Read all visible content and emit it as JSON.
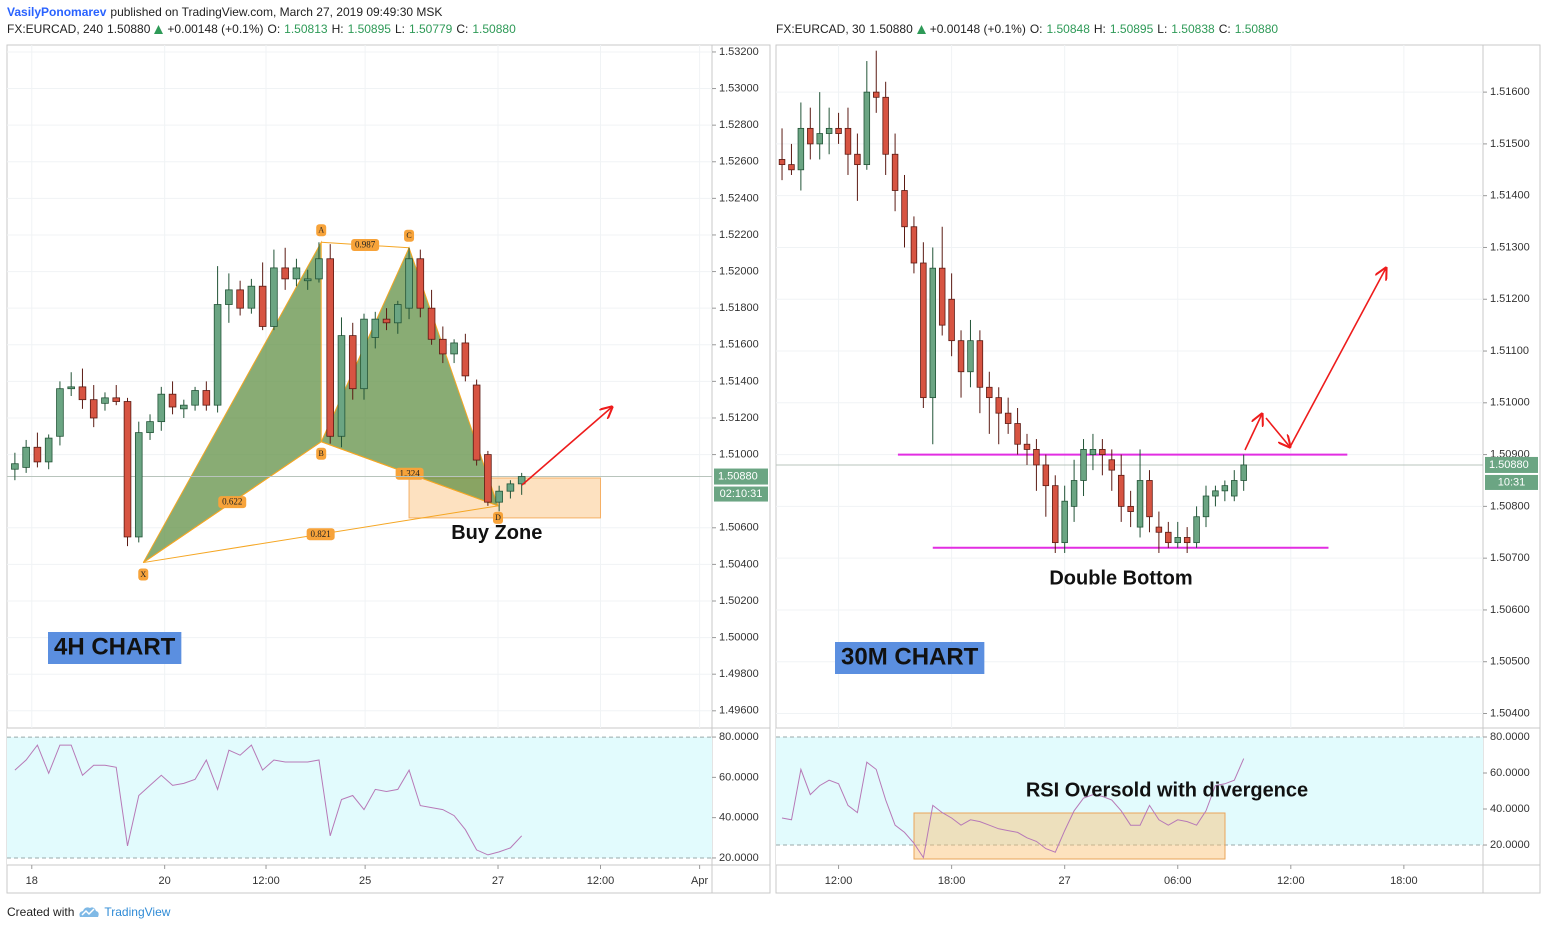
{
  "header": {
    "author": "VasilyPonomarev",
    "published": "published on TradingView.com, March 27, 2019 09:49:30 MSK"
  },
  "footer": {
    "created": "Created with",
    "brand": "TradingView"
  },
  "chart_data": [
    {
      "type": "candlestick",
      "legend": {
        "symbol": "FX:EURCAD, 240",
        "last": "1.50880",
        "change": "+0.00148 (+0.1%)",
        "ohlc": [
          {
            "name": "O:",
            "value": "1.50813"
          },
          {
            "name": "H:",
            "value": "1.50895"
          },
          {
            "name": "L:",
            "value": "1.50779"
          },
          {
            "name": "C:",
            "value": "1.50880"
          }
        ]
      },
      "colors": {
        "up": "#6ba583",
        "down": "#d75442",
        "up_border": "#225437",
        "down_border": "#5b1a13",
        "rsi": "#b779b7"
      },
      "grid": true,
      "open": [
        1.5092,
        1.5093,
        1.5104,
        1.5096,
        1.511,
        1.5136,
        1.5137,
        1.513,
        1.5128,
        1.5131,
        1.5129,
        1.5055,
        1.5112,
        1.5118,
        1.5133,
        1.5125,
        1.5127,
        1.5135,
        1.5127,
        1.5182,
        1.519,
        1.518,
        1.5192,
        1.517,
        1.5202,
        1.5196,
        1.5195,
        1.5196,
        1.5207,
        1.511,
        1.5165,
        1.5136,
        1.5164,
        1.5174,
        1.5172,
        1.518,
        1.5207,
        1.518,
        1.5163,
        1.5155,
        1.5161,
        1.5138,
        1.51,
        1.5074,
        1.508,
        1.5084
      ],
      "high": [
        1.5101,
        1.5108,
        1.5112,
        1.5111,
        1.514,
        1.5145,
        1.5147,
        1.5138,
        1.5134,
        1.5138,
        1.5131,
        1.5118,
        1.5122,
        1.5137,
        1.514,
        1.513,
        1.5137,
        1.514,
        1.5203,
        1.5199,
        1.5195,
        1.5196,
        1.5205,
        1.5212,
        1.5213,
        1.5207,
        1.5201,
        1.5216,
        1.5215,
        1.5175,
        1.5172,
        1.5177,
        1.5178,
        1.518,
        1.5184,
        1.5213,
        1.5212,
        1.519,
        1.517,
        1.5163,
        1.5166,
        1.5141,
        1.5102,
        1.5083,
        1.5086,
        1.509
      ],
      "low": [
        1.5086,
        1.509,
        1.5093,
        1.5092,
        1.5105,
        1.5132,
        1.5125,
        1.5115,
        1.5124,
        1.5127,
        1.505,
        1.5052,
        1.5108,
        1.5113,
        1.5122,
        1.512,
        1.5124,
        1.5124,
        1.5123,
        1.5172,
        1.5176,
        1.5177,
        1.5168,
        1.5168,
        1.519,
        1.5192,
        1.519,
        1.5194,
        1.5106,
        1.5104,
        1.513,
        1.513,
        1.5158,
        1.5168,
        1.5166,
        1.5174,
        1.5175,
        1.516,
        1.515,
        1.515,
        1.514,
        1.5094,
        1.5072,
        1.5069,
        1.5076,
        1.5078
      ],
      "close": [
        1.5095,
        1.5104,
        1.5096,
        1.5109,
        1.5136,
        1.5137,
        1.513,
        1.512,
        1.5131,
        1.5129,
        1.5055,
        1.5112,
        1.5118,
        1.5133,
        1.5126,
        1.5127,
        1.5135,
        1.5127,
        1.5182,
        1.519,
        1.518,
        1.5192,
        1.517,
        1.5202,
        1.5196,
        1.5202,
        1.5196,
        1.5207,
        1.511,
        1.5165,
        1.5136,
        1.5174,
        1.5174,
        1.5172,
        1.5182,
        1.5207,
        1.518,
        1.5163,
        1.5155,
        1.5161,
        1.5143,
        1.5097,
        1.5074,
        1.508,
        1.5084,
        1.5088
      ],
      "xlim": [
        -0.7,
        61.9
      ],
      "xticks": [
        {
          "value": 1.5,
          "label": "18"
        },
        {
          "value": 13.3,
          "label": "20"
        },
        {
          "value": 22.3,
          "label": "12:00"
        },
        {
          "value": 31.1,
          "label": "25"
        },
        {
          "value": 42.9,
          "label": "27"
        },
        {
          "value": 52,
          "label": "12:00"
        },
        {
          "value": 60.8,
          "label": "Apr"
        }
      ],
      "ylim": [
        1.49506,
        1.53238
      ],
      "yticks": [
        {
          "value": 1.532,
          "label": "1.53200"
        },
        {
          "value": 1.53,
          "label": "1.53000"
        },
        {
          "value": 1.528,
          "label": "1.52800"
        },
        {
          "value": 1.526,
          "label": "1.52600"
        },
        {
          "value": 1.524,
          "label": "1.52400"
        },
        {
          "value": 1.522,
          "label": "1.52200"
        },
        {
          "value": 1.52,
          "label": "1.52000"
        },
        {
          "value": 1.518,
          "label": "1.51800"
        },
        {
          "value": 1.516,
          "label": "1.51600"
        },
        {
          "value": 1.514,
          "label": "1.51400"
        },
        {
          "value": 1.512,
          "label": "1.51200"
        },
        {
          "value": 1.51,
          "label": "1.51000"
        },
        {
          "value": 1.506,
          "label": "1.50600"
        },
        {
          "value": 1.504,
          "label": "1.50400"
        },
        {
          "value": 1.502,
          "label": "1.50200"
        },
        {
          "value": 1.5,
          "label": "1.50000"
        },
        {
          "value": 1.498,
          "label": "1.49800"
        },
        {
          "value": 1.496,
          "label": "1.49600"
        }
      ],
      "last_price": {
        "value": 1.5088,
        "label": "1.50880"
      },
      "countdown": "02:10:31",
      "rsi": {
        "values": [
          63.6,
          68.6,
          76,
          62,
          76,
          76,
          61,
          66,
          66,
          65,
          26,
          51,
          56,
          61,
          56,
          57,
          59,
          68.6,
          54,
          73.5,
          71,
          76,
          63.6,
          68.6,
          67.6,
          67.6,
          67.6,
          68.6,
          31,
          49,
          51,
          44,
          54,
          53,
          54,
          63.6,
          46,
          45,
          44,
          41,
          34,
          24,
          21.5,
          23,
          25,
          31
        ],
        "ylim": [
          16.5,
          84.5
        ],
        "yticks": [
          {
            "value": 80,
            "label": "80.0000"
          },
          {
            "value": 60,
            "label": "60.0000"
          },
          {
            "value": 40,
            "label": "40.0000"
          },
          {
            "value": 20,
            "label": "20.0000"
          }
        ]
      },
      "pattern": {
        "points": [
          {
            "label": "X",
            "x": 11.4,
            "price": 1.5041
          },
          {
            "label": "A",
            "x": 27.2,
            "price": 1.5216
          },
          {
            "label": "B",
            "x": 27.2,
            "price": 1.5107
          },
          {
            "label": "C",
            "x": 35.0,
            "price": 1.5213
          },
          {
            "label": "D",
            "x": 42.9,
            "price": 1.5072
          }
        ],
        "ratios": {
          "XB": 0.622,
          "AC": 0.987,
          "BD": 1.324,
          "XD": 0.821
        }
      },
      "zone": {
        "label": "Buy Zone",
        "x": [
          35,
          52
        ],
        "price": [
          1.50654,
          1.50872
        ]
      },
      "chart_label": "4H CHART",
      "annotations": []
    },
    {
      "type": "candlestick",
      "legend": {
        "symbol": "FX:EURCAD, 30",
        "last": "1.50880",
        "change": "+0.00148 (+0.1%)",
        "ohlc": [
          {
            "name": "O:",
            "value": "1.50848"
          },
          {
            "name": "H:",
            "value": "1.50895"
          },
          {
            "name": "L:",
            "value": "1.50838"
          },
          {
            "name": "C:",
            "value": "1.50880"
          }
        ]
      },
      "colors": {
        "up": "#6ba583",
        "down": "#d75442",
        "up_border": "#225437",
        "down_border": "#5b1a13",
        "rsi": "#b779b7"
      },
      "grid": true,
      "open": [
        1.5147,
        1.5146,
        1.5145,
        1.5153,
        1.515,
        1.5152,
        1.5153,
        1.5153,
        1.5148,
        1.5146,
        1.516,
        1.5159,
        1.5148,
        1.5141,
        1.5134,
        1.5127,
        1.5101,
        1.5126,
        1.512,
        1.5112,
        1.5106,
        1.5112,
        1.5103,
        1.5101,
        1.5098,
        1.5096,
        1.5092,
        1.5091,
        1.5088,
        1.5084,
        1.5073,
        1.508,
        1.5085,
        1.509,
        1.5091,
        1.5089,
        1.5086,
        1.508,
        1.5076,
        1.5085,
        1.5076,
        1.5075,
        1.5073,
        1.5074,
        1.5073,
        1.5078,
        1.5082,
        1.5083,
        1.5082,
        1.5085
      ],
      "high": [
        1.5153,
        1.515,
        1.5158,
        1.5157,
        1.516,
        1.5157,
        1.5156,
        1.5157,
        1.5152,
        1.5166,
        1.5168,
        1.5162,
        1.5152,
        1.5144,
        1.5136,
        1.5131,
        1.513,
        1.5134,
        1.5125,
        1.5114,
        1.5116,
        1.5114,
        1.5106,
        1.5103,
        1.5101,
        1.5099,
        1.5094,
        1.5093,
        1.509,
        1.5086,
        1.5084,
        1.5089,
        1.5093,
        1.5094,
        1.5093,
        1.5091,
        1.509,
        1.5083,
        1.5091,
        1.5087,
        1.5079,
        1.5077,
        1.5077,
        1.5076,
        1.508,
        1.5084,
        1.5084,
        1.5085,
        1.5087,
        1.509
      ],
      "low": [
        1.5143,
        1.5144,
        1.5141,
        1.5147,
        1.5147,
        1.5148,
        1.515,
        1.5144,
        1.5139,
        1.5145,
        1.5156,
        1.5144,
        1.5137,
        1.513,
        1.5125,
        1.5099,
        1.5092,
        1.5113,
        1.5109,
        1.5101,
        1.5103,
        1.5098,
        1.5094,
        1.5092,
        1.5094,
        1.509,
        1.5088,
        1.5083,
        1.5078,
        1.5071,
        1.5071,
        1.5077,
        1.5082,
        1.5087,
        1.5086,
        1.5083,
        1.5077,
        1.5076,
        1.5074,
        1.5075,
        1.5071,
        1.5072,
        1.5072,
        1.5071,
        1.5072,
        1.5076,
        1.508,
        1.5081,
        1.5081,
        1.5083
      ],
      "close": [
        1.5146,
        1.5145,
        1.5153,
        1.515,
        1.5152,
        1.5153,
        1.5152,
        1.5148,
        1.5146,
        1.516,
        1.5159,
        1.5148,
        1.5141,
        1.5134,
        1.5127,
        1.5101,
        1.5126,
        1.5115,
        1.5112,
        1.5106,
        1.5112,
        1.5103,
        1.5101,
        1.5098,
        1.5096,
        1.5092,
        1.5091,
        1.5088,
        1.5084,
        1.5073,
        1.5081,
        1.5085,
        1.5091,
        1.5091,
        1.509,
        1.5087,
        1.508,
        1.5079,
        1.5085,
        1.5078,
        1.5075,
        1.5073,
        1.5074,
        1.5073,
        1.5078,
        1.5082,
        1.5083,
        1.5084,
        1.5085,
        1.5088
      ],
      "xlim": [
        -0.64,
        74.4
      ],
      "xticks": [
        {
          "value": 6,
          "label": "12:00"
        },
        {
          "value": 18,
          "label": "18:00"
        },
        {
          "value": 30,
          "label": "27"
        },
        {
          "value": 42,
          "label": "06:00"
        },
        {
          "value": 54,
          "label": "12:00"
        },
        {
          "value": 66,
          "label": "18:00"
        }
      ],
      "ylim": [
        1.50372,
        1.51691
      ],
      "yticks": [
        {
          "value": 1.516,
          "label": "1.51600"
        },
        {
          "value": 1.515,
          "label": "1.51500"
        },
        {
          "value": 1.514,
          "label": "1.51400"
        },
        {
          "value": 1.513,
          "label": "1.51300"
        },
        {
          "value": 1.512,
          "label": "1.51200"
        },
        {
          "value": 1.511,
          "label": "1.51100"
        },
        {
          "value": 1.51,
          "label": "1.51000"
        },
        {
          "value": 1.509,
          "label": "1.50900"
        },
        {
          "value": 1.508,
          "label": "1.50800"
        },
        {
          "value": 1.507,
          "label": "1.50700"
        },
        {
          "value": 1.506,
          "label": "1.50600"
        },
        {
          "value": 1.505,
          "label": "1.50500"
        },
        {
          "value": 1.504,
          "label": "1.50400"
        }
      ],
      "last_price": {
        "value": 1.5088,
        "label": "1.50880"
      },
      "countdown": "10:31",
      "rsi": {
        "values": [
          35,
          34,
          62,
          48,
          53,
          56,
          54,
          42,
          38,
          66,
          62,
          45,
          31,
          27,
          21,
          13,
          42,
          38,
          35,
          31,
          34,
          33,
          31,
          29,
          28,
          27,
          24,
          22,
          18,
          16,
          28,
          39,
          46,
          48,
          47,
          45,
          39,
          31,
          31,
          42,
          34,
          31,
          34,
          33,
          31,
          39,
          53,
          54,
          56,
          68
        ],
        "ylim": [
          8.9,
          85
        ],
        "yticks": [
          {
            "value": 80,
            "label": "80.0000"
          },
          {
            "value": 60,
            "label": "60.0000"
          },
          {
            "value": 40,
            "label": "40.0000"
          },
          {
            "value": 20,
            "label": "20.0000"
          }
        ]
      },
      "levels": [
        {
          "price": 1.509,
          "x": [
            12.3,
            60.0
          ]
        },
        {
          "price": 1.5072,
          "x": [
            16.0,
            58.0
          ]
        }
      ],
      "chart_label": "30M CHART",
      "annotations": [
        "Double Bottom",
        "RSI Oversold with divergence"
      ]
    }
  ]
}
